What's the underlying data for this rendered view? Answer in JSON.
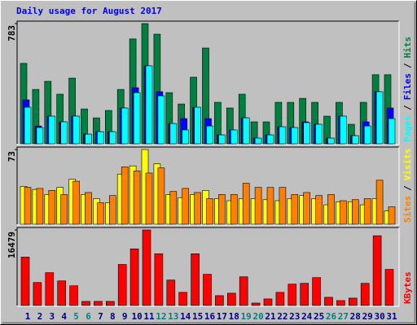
{
  "title": "Daily usage for August 2017",
  "legend_separator": "/",
  "chart_data": [
    {
      "type": "bar",
      "ylim": [
        0,
        783
      ],
      "yticks": [
        783
      ],
      "series": [
        {
          "name": "Hits",
          "color": "#008040",
          "values": [
            524,
            354,
            407,
            323,
            428,
            227,
            169,
            217,
            354,
            683,
            783,
            714,
            333,
            259,
            434,
            624,
            270,
            233,
            323,
            143,
            143,
            270,
            270,
            296,
            270,
            180,
            270,
            127,
            270,
            450,
            450
          ]
        },
        {
          "name": "Files",
          "color": "#0000ff",
          "values": [
            286,
            116,
            180,
            143,
            180,
            63,
            79,
            79,
            233,
            365,
            508,
            339,
            132,
            164,
            238,
            164,
            58,
            90,
            169,
            37,
            58,
            111,
            106,
            143,
            127,
            37,
            180,
            53,
            143,
            339,
            233
          ]
        },
        {
          "name": "Pages",
          "color": "#00ffff",
          "values": [
            238,
            106,
            180,
            143,
            180,
            63,
            79,
            79,
            233,
            333,
            508,
            312,
            132,
            90,
            238,
            116,
            58,
            90,
            169,
            37,
            58,
            111,
            106,
            138,
            127,
            37,
            180,
            53,
            116,
            339,
            164
          ]
        }
      ]
    },
    {
      "type": "bar",
      "ylim": [
        0,
        73
      ],
      "yticks": [
        73
      ],
      "series": [
        {
          "name": "Visits",
          "color": "#ffff00",
          "values": [
            37,
            34,
            29,
            36,
            44,
            29,
            25,
            21,
            49,
            57,
            73,
            59,
            29,
            26,
            29,
            33,
            25,
            23,
            25,
            25,
            24,
            23,
            25,
            28,
            25,
            19,
            22,
            22,
            19,
            25,
            13
          ]
        },
        {
          "name": "Sites",
          "color": "#ff8000",
          "values": [
            36,
            35,
            33,
            29,
            42,
            31,
            21,
            28,
            56,
            52,
            50,
            55,
            32,
            35,
            31,
            25,
            29,
            29,
            40,
            36,
            36,
            36,
            29,
            31,
            28,
            29,
            23,
            24,
            25,
            43,
            17
          ]
        }
      ]
    },
    {
      "type": "bar",
      "ylim": [
        0,
        16479
      ],
      "yticks": [
        16479
      ],
      "series": [
        {
          "name": "KBytes",
          "color": "#ff0000",
          "values": [
            10562,
            5012,
            7160,
            5370,
            4296,
            895,
            895,
            895,
            8950,
            12351,
            16479,
            11277,
            5549,
            2864,
            11277,
            6802,
            2148,
            2685,
            6265,
            537,
            1432,
            2864,
            4654,
            4833,
            6086,
            1790,
            1074,
            1611,
            4833,
            15215,
            7876
          ]
        }
      ],
      "categories": [
        "1",
        "2",
        "3",
        "4",
        "5",
        "6",
        "7",
        "8",
        "9",
        "10",
        "11",
        "12",
        "13",
        "14",
        "15",
        "16",
        "17",
        "18",
        "19",
        "20",
        "21",
        "22",
        "23",
        "24",
        "25",
        "26",
        "27",
        "28",
        "29",
        "30",
        "31"
      ],
      "label_colors": [
        "#000080",
        "#000080",
        "#000080",
        "#000080",
        "#008080",
        "#008080",
        "#000080",
        "#000080",
        "#000080",
        "#000080",
        "#000080",
        "#008080",
        "#008080",
        "#000080",
        "#000080",
        "#000080",
        "#000080",
        "#000080",
        "#008080",
        "#008080",
        "#000080",
        "#000080",
        "#000080",
        "#000080",
        "#000080",
        "#008080",
        "#008080",
        "#000080",
        "#000080",
        "#000080",
        "#000080"
      ]
    }
  ]
}
